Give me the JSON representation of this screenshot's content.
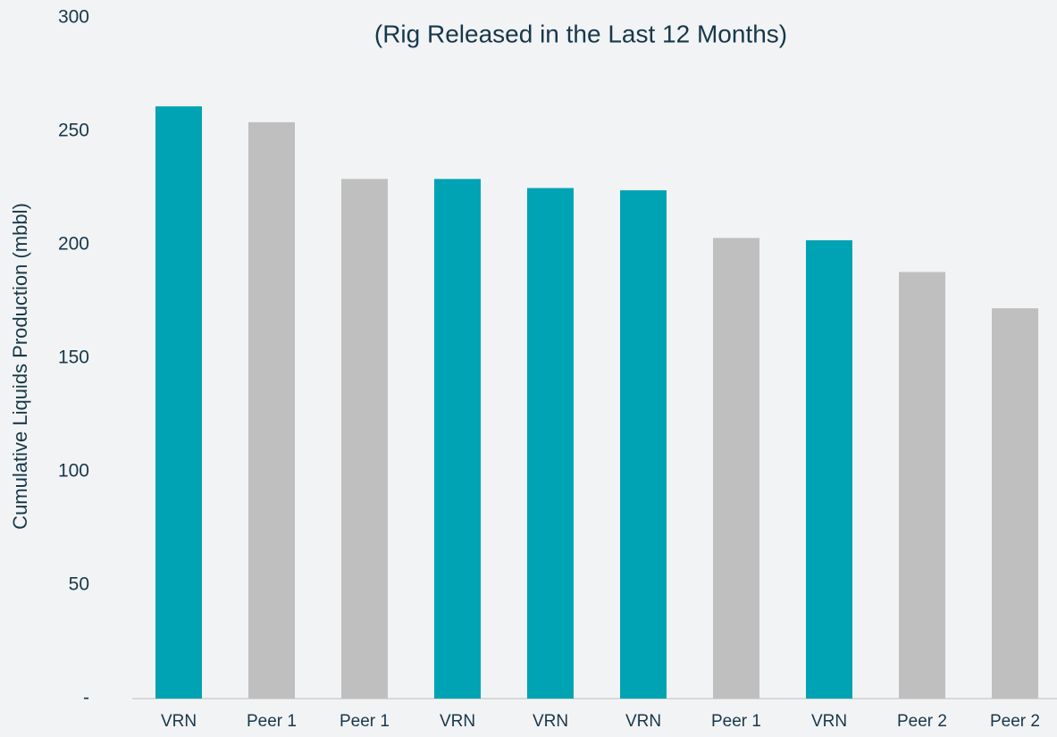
{
  "chart_data": {
    "type": "bar",
    "subtitle": "(Rig Released in the Last 12 Months)",
    "y_label": "Cumulative Liquids Production (mbbl)",
    "categories": [
      "VRN",
      "Peer 1",
      "Peer 1",
      "VRN",
      "VRN",
      "VRN",
      "Peer 1",
      "VRN",
      "Peer 2",
      "Peer 2"
    ],
    "values": [
      261,
      254,
      229,
      229,
      225,
      224,
      203,
      202,
      188,
      172
    ],
    "colors": [
      "#00a3b4",
      "#bfbfbf",
      "#bfbfbf",
      "#00a3b4",
      "#00a3b4",
      "#00a3b4",
      "#bfbfbf",
      "#00a3b4",
      "#bfbfbf",
      "#bfbfbf"
    ],
    "ylim": [
      0,
      300
    ],
    "yticks": [
      {
        "value": 0,
        "label": "-"
      },
      50,
      100,
      150,
      200,
      250,
      300
    ],
    "grid": false
  }
}
